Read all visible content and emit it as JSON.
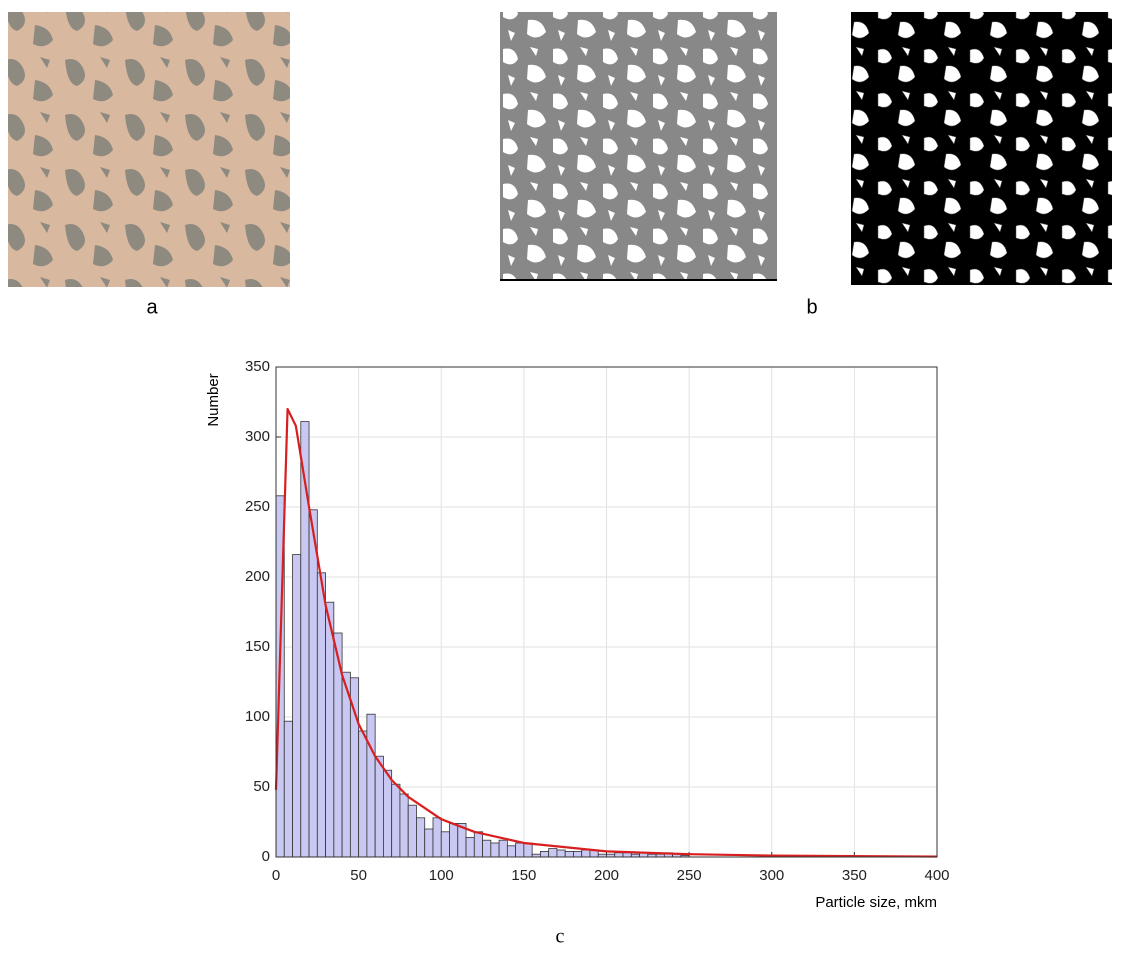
{
  "panels": [
    "a",
    "b",
    "c"
  ],
  "chart_data": {
    "type": "histogram",
    "ylabel": "Number",
    "xlabel": "Particle size, mkm",
    "bins": [
      0,
      5,
      10,
      15,
      20,
      25,
      30,
      35,
      40,
      45,
      50,
      55,
      60,
      65,
      70,
      75,
      80,
      85,
      90,
      95,
      100,
      105,
      110,
      115,
      120,
      125,
      130,
      135,
      140,
      145,
      150,
      155,
      160,
      165,
      170,
      175,
      180,
      185,
      190,
      195,
      200,
      205,
      210,
      215,
      220,
      225,
      230,
      235,
      240,
      245,
      250
    ],
    "values": [
      258,
      97,
      216,
      311,
      248,
      203,
      182,
      160,
      132,
      128,
      90,
      102,
      72,
      62,
      52,
      45,
      37,
      28,
      20,
      28,
      18,
      24,
      24,
      14,
      18,
      12,
      10,
      12,
      8,
      10,
      10,
      2,
      4,
      6,
      5,
      4,
      4,
      5,
      5,
      2,
      2,
      3,
      3,
      2,
      3,
      2,
      2,
      3,
      2,
      1
    ],
    "color": "#c8c8f2",
    "edgecolor": "#333333",
    "fit": {
      "type": "line",
      "color": "#d81e1e",
      "x": [
        0,
        7,
        12,
        20,
        30,
        40,
        50,
        60,
        70,
        80,
        100,
        120,
        150,
        200,
        250,
        300,
        400
      ],
      "values": [
        48,
        320,
        308,
        250,
        180,
        130,
        95,
        72,
        55,
        43,
        27,
        18,
        10,
        4,
        2,
        1,
        0.3
      ]
    },
    "xlim": [
      0,
      400
    ],
    "ylim": [
      0,
      350
    ],
    "xticks": [
      0,
      50,
      100,
      150,
      200,
      250,
      300,
      350,
      400
    ],
    "yticks": [
      0,
      50,
      100,
      150,
      200,
      250,
      300,
      350
    ],
    "grid": true
  }
}
